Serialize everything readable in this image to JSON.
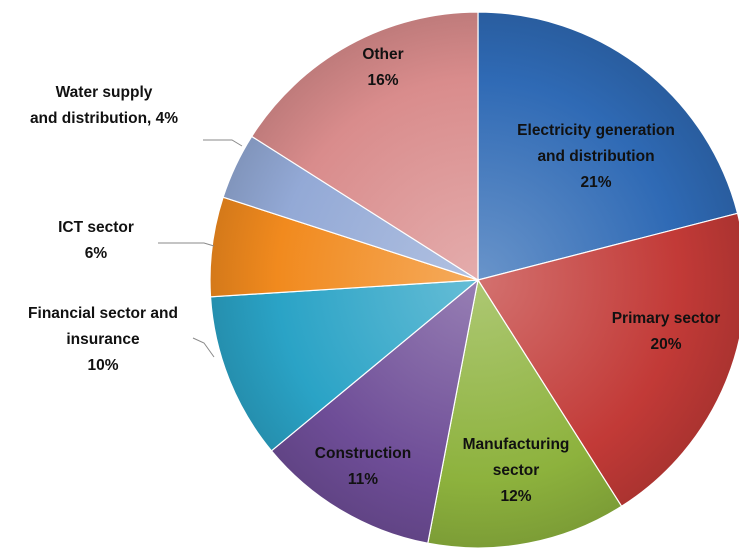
{
  "chart_data": {
    "type": "pie",
    "title": "",
    "slices": [
      {
        "label_lines": [
          "Electricity generation",
          "and distribution",
          "21%"
        ],
        "value": 21,
        "color": "#2f6ab5"
      },
      {
        "label_lines": [
          "Primary sector",
          "20%"
        ],
        "value": 20,
        "color": "#c23a37"
      },
      {
        "label_lines": [
          "Manufacturing",
          "sector",
          "12%"
        ],
        "value": 12,
        "color": "#8db23d"
      },
      {
        "label_lines": [
          "Construction",
          "11%"
        ],
        "value": 11,
        "color": "#6e4d97"
      },
      {
        "label_lines": [
          "Financial sector and",
          "insurance",
          "10%"
        ],
        "value": 10,
        "color": "#2aa3c6"
      },
      {
        "label_lines": [
          "ICT sector",
          "6%"
        ],
        "value": 6,
        "color": "#f18a1e"
      },
      {
        "label_lines": [
          "Water supply",
          "and distribution, 4%"
        ],
        "value": 4,
        "color": "#93a9d6"
      },
      {
        "label_lines": [
          "Other",
          "16%"
        ],
        "value": 16,
        "color": "#d98c8c"
      }
    ],
    "start_angle": "12 o'clock",
    "direction": "clockwise",
    "legend": "none",
    "style": "3d-shaded"
  }
}
